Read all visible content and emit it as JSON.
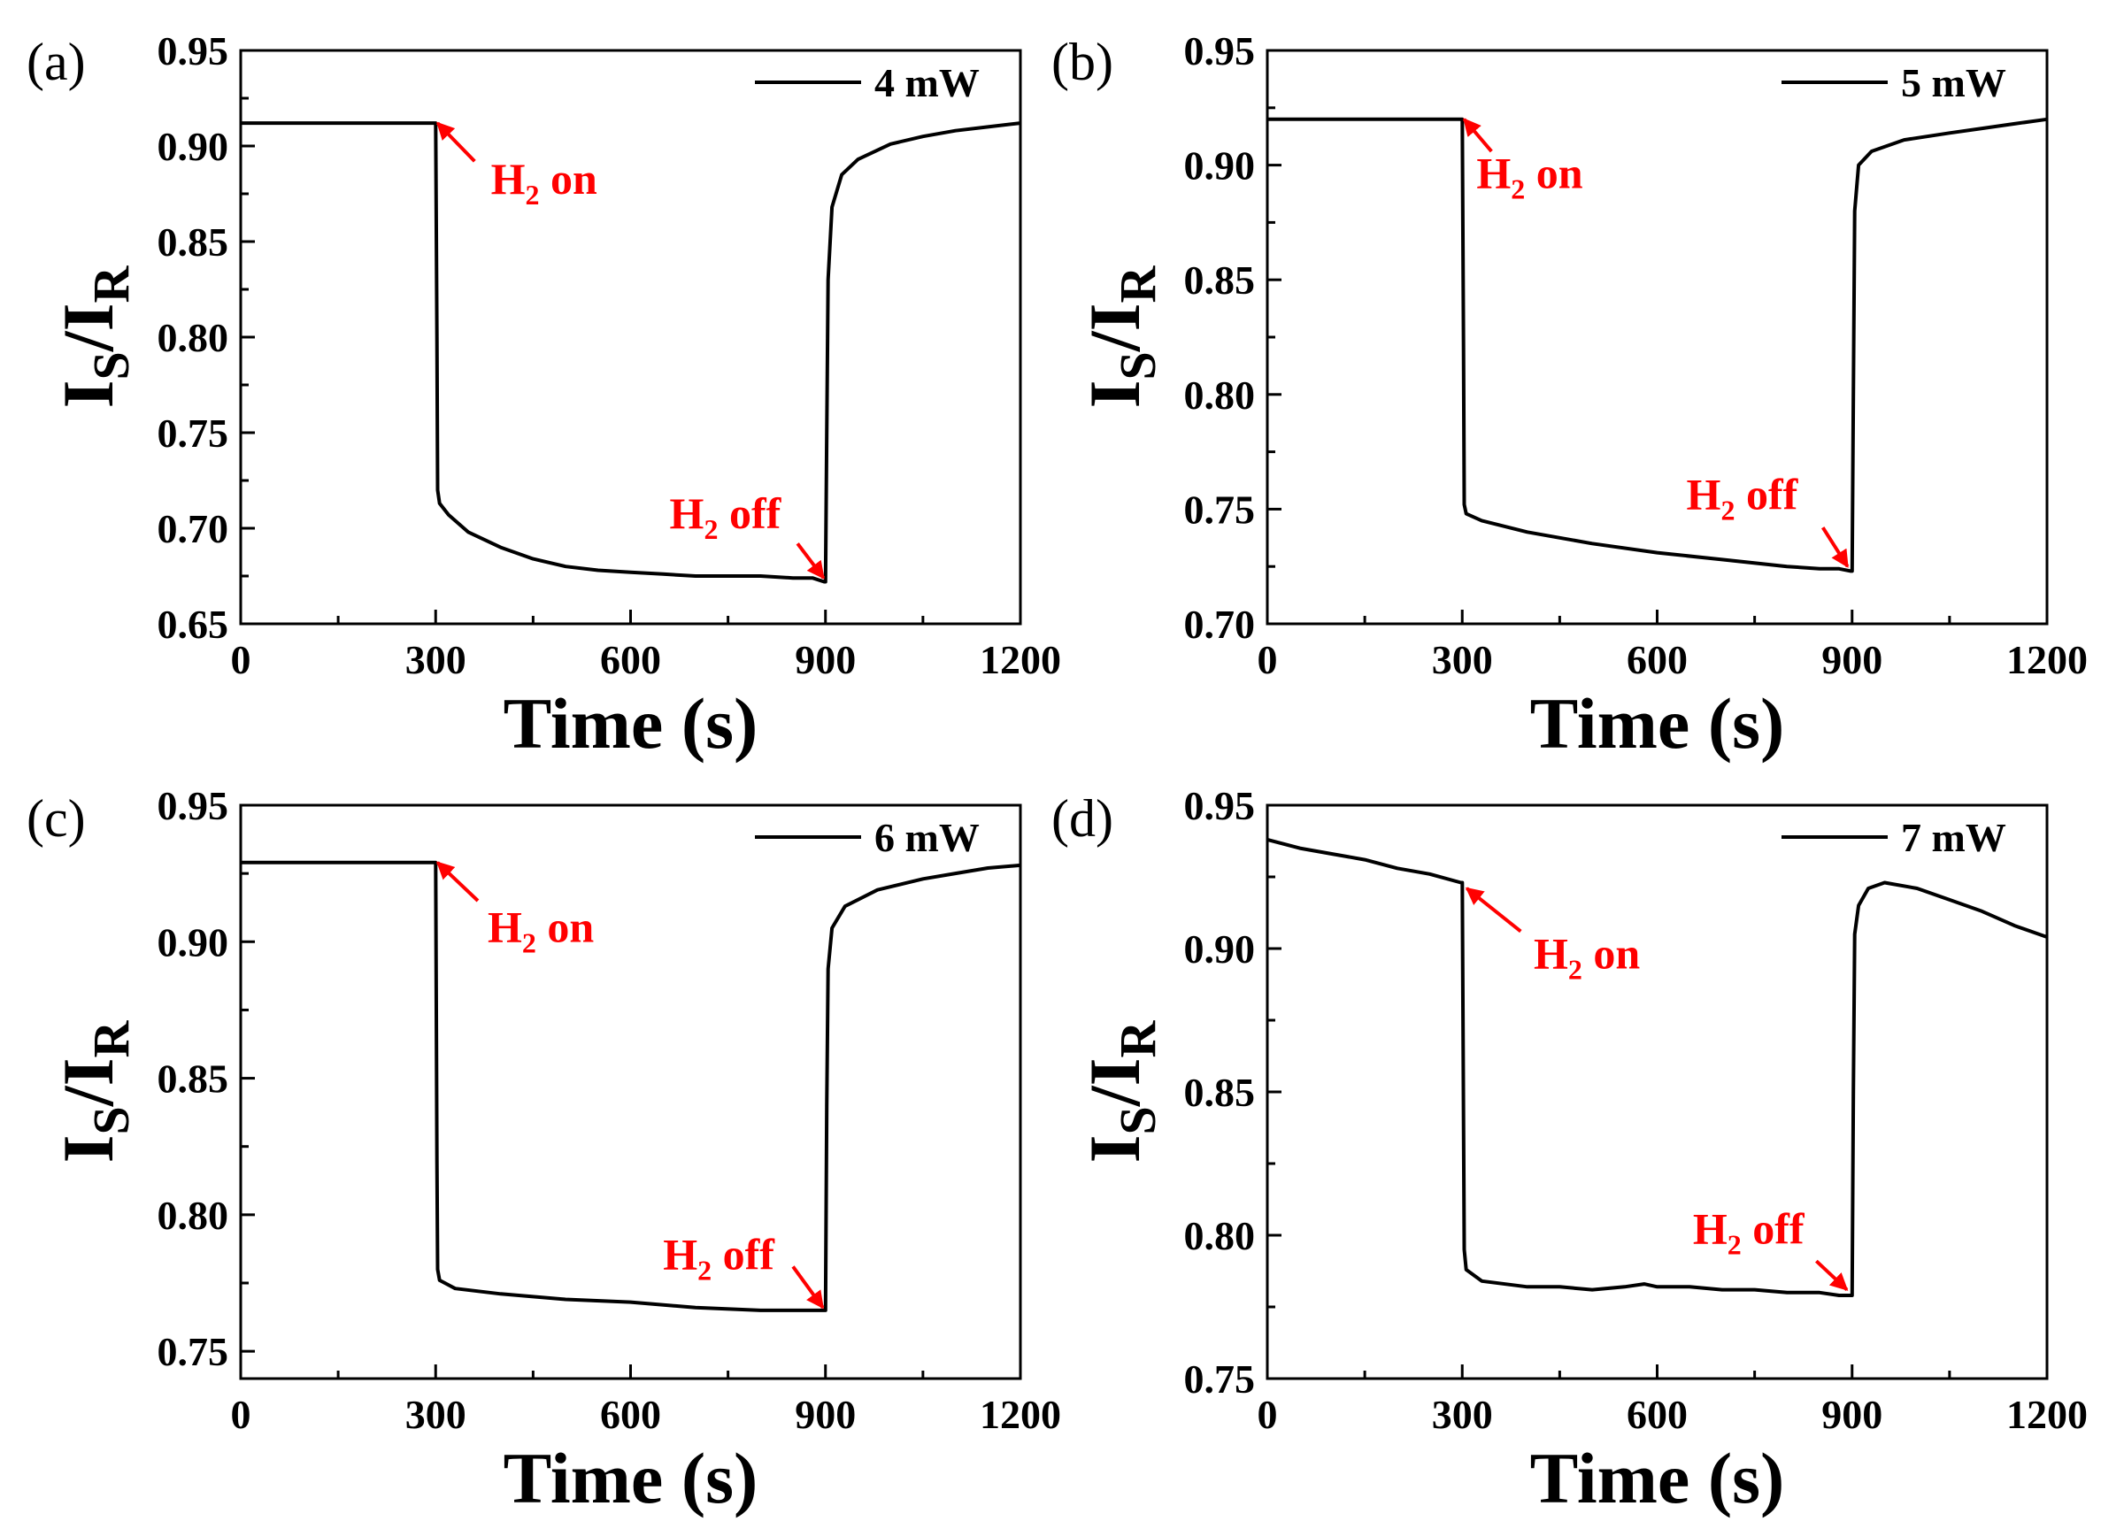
{
  "chart_data": [
    {
      "type": "line",
      "panel_label": "(a)",
      "xlabel": "Time (s)",
      "ylabel": {
        "main": "I",
        "sub1": "S",
        "slash": "/I",
        "sub2": "R"
      },
      "xlim": [
        0,
        1200
      ],
      "ylim": [
        0.65,
        0.95
      ],
      "xticks": [
        0,
        300,
        600,
        900,
        1200
      ],
      "yticks": [
        "0.65",
        "0.70",
        "0.75",
        "0.80",
        "0.85",
        "0.90",
        "0.95"
      ],
      "legend": {
        "label": "4 mW",
        "position": "top-right"
      },
      "series": [
        {
          "color": "#000000",
          "points": [
            [
              0,
              0.912
            ],
            [
              298,
              0.912
            ],
            [
              300,
              0.912
            ],
            [
              302,
              0.8
            ],
            [
              303,
              0.72
            ],
            [
              306,
              0.713
            ],
            [
              320,
              0.707
            ],
            [
              350,
              0.698
            ],
            [
              400,
              0.69
            ],
            [
              450,
              0.684
            ],
            [
              500,
              0.68
            ],
            [
              550,
              0.678
            ],
            [
              600,
              0.677
            ],
            [
              650,
              0.676
            ],
            [
              700,
              0.675
            ],
            [
              750,
              0.675
            ],
            [
              800,
              0.675
            ],
            [
              850,
              0.674
            ],
            [
              880,
              0.674
            ],
            [
              898,
              0.672
            ],
            [
              900,
              0.672
            ],
            [
              902,
              0.75
            ],
            [
              904,
              0.83
            ],
            [
              910,
              0.868
            ],
            [
              925,
              0.885
            ],
            [
              950,
              0.893
            ],
            [
              1000,
              0.901
            ],
            [
              1050,
              0.905
            ],
            [
              1100,
              0.908
            ],
            [
              1150,
              0.91
            ],
            [
              1200,
              0.912
            ]
          ]
        }
      ],
      "annotations": [
        {
          "main": "H",
          "sub": "2",
          "rest": " on",
          "text_at": [
            385,
            0.875
          ],
          "arrow_from": [
            360,
            0.892
          ],
          "arrow_to": [
            303,
            0.912
          ]
        },
        {
          "main": "H",
          "sub": "2",
          "rest": " off",
          "text_at": [
            660,
            0.7
          ],
          "arrow_from": [
            857,
            0.692
          ],
          "arrow_to": [
            897,
            0.674
          ]
        }
      ]
    },
    {
      "type": "line",
      "panel_label": "(b)",
      "xlabel": "Time (s)",
      "ylabel": {
        "main": "I",
        "sub1": "S",
        "slash": "/I",
        "sub2": "R"
      },
      "xlim": [
        0,
        1200
      ],
      "ylim": [
        0.7,
        0.95
      ],
      "xticks": [
        0,
        300,
        600,
        900,
        1200
      ],
      "yticks": [
        "0.70",
        "0.75",
        "0.80",
        "0.85",
        "0.90",
        "0.95"
      ],
      "legend": {
        "label": "5 mW",
        "position": "top-right"
      },
      "series": [
        {
          "color": "#000000",
          "points": [
            [
              0,
              0.92
            ],
            [
              298,
              0.92
            ],
            [
              300,
              0.92
            ],
            [
              302,
              0.82
            ],
            [
              303,
              0.752
            ],
            [
              306,
              0.748
            ],
            [
              330,
              0.745
            ],
            [
              400,
              0.74
            ],
            [
              500,
              0.735
            ],
            [
              600,
              0.731
            ],
            [
              700,
              0.728
            ],
            [
              800,
              0.725
            ],
            [
              850,
              0.724
            ],
            [
              880,
              0.724
            ],
            [
              898,
              0.723
            ],
            [
              900,
              0.723
            ],
            [
              902,
              0.8
            ],
            [
              904,
              0.88
            ],
            [
              910,
              0.9
            ],
            [
              930,
              0.906
            ],
            [
              980,
              0.911
            ],
            [
              1050,
              0.914
            ],
            [
              1100,
              0.916
            ],
            [
              1150,
              0.918
            ],
            [
              1200,
              0.92
            ]
          ]
        }
      ],
      "annotations": [
        {
          "main": "H",
          "sub": "2",
          "rest": " on",
          "text_at": [
            322,
            0.89
          ],
          "arrow_from": [
            345,
            0.906
          ],
          "arrow_to": [
            303,
            0.92
          ]
        },
        {
          "main": "H",
          "sub": "2",
          "rest": " off",
          "text_at": [
            645,
            0.75
          ],
          "arrow_from": [
            855,
            0.742
          ],
          "arrow_to": [
            893,
            0.725
          ]
        }
      ]
    },
    {
      "type": "line",
      "panel_label": "(c)",
      "xlabel": "Time (s)",
      "ylabel": {
        "main": "I",
        "sub1": "S",
        "slash": "/I",
        "sub2": "R"
      },
      "xlim": [
        0,
        1200
      ],
      "ylim": [
        0.74,
        0.95
      ],
      "xticks": [
        0,
        300,
        600,
        900,
        1200
      ],
      "yticks": [
        "0.75",
        "0.80",
        "0.85",
        "0.90",
        "0.95"
      ],
      "legend": {
        "label": "6 mW",
        "position": "top-right"
      },
      "series": [
        {
          "color": "#000000",
          "points": [
            [
              0,
              0.929
            ],
            [
              298,
              0.929
            ],
            [
              300,
              0.929
            ],
            [
              302,
              0.82
            ],
            [
              303,
              0.78
            ],
            [
              306,
              0.776
            ],
            [
              330,
              0.773
            ],
            [
              400,
              0.771
            ],
            [
              500,
              0.769
            ],
            [
              600,
              0.768
            ],
            [
              700,
              0.766
            ],
            [
              800,
              0.765
            ],
            [
              880,
              0.765
            ],
            [
              900,
              0.765
            ],
            [
              902,
              0.84
            ],
            [
              904,
              0.89
            ],
            [
              910,
              0.905
            ],
            [
              930,
              0.913
            ],
            [
              980,
              0.919
            ],
            [
              1050,
              0.923
            ],
            [
              1100,
              0.925
            ],
            [
              1150,
              0.927
            ],
            [
              1200,
              0.928
            ]
          ]
        }
      ],
      "annotations": [
        {
          "main": "H",
          "sub": "2",
          "rest": " on",
          "text_at": [
            380,
            0.9
          ],
          "arrow_from": [
            365,
            0.915
          ],
          "arrow_to": [
            303,
            0.929
          ]
        },
        {
          "main": "H",
          "sub": "2",
          "rest": " off",
          "text_at": [
            650,
            0.78
          ],
          "arrow_from": [
            850,
            0.781
          ],
          "arrow_to": [
            896,
            0.766
          ]
        }
      ]
    },
    {
      "type": "line",
      "panel_label": "(d)",
      "xlabel": "Time (s)",
      "ylabel": {
        "main": "I",
        "sub1": "S",
        "slash": "/I",
        "sub2": "R"
      },
      "xlim": [
        0,
        1200
      ],
      "ylim": [
        0.75,
        0.95
      ],
      "xticks": [
        0,
        300,
        600,
        900,
        1200
      ],
      "yticks": [
        "0.75",
        "0.80",
        "0.85",
        "0.90",
        "0.95"
      ],
      "legend": {
        "label": "7 mW",
        "position": "top-right"
      },
      "series": [
        {
          "color": "#000000",
          "points": [
            [
              0,
              0.938
            ],
            [
              50,
              0.935
            ],
            [
              100,
              0.933
            ],
            [
              150,
              0.931
            ],
            [
              200,
              0.928
            ],
            [
              250,
              0.926
            ],
            [
              298,
              0.923
            ],
            [
              300,
              0.923
            ],
            [
              302,
              0.84
            ],
            [
              303,
              0.795
            ],
            [
              306,
              0.788
            ],
            [
              330,
              0.784
            ],
            [
              400,
              0.782
            ],
            [
              450,
              0.782
            ],
            [
              500,
              0.781
            ],
            [
              550,
              0.782
            ],
            [
              580,
              0.783
            ],
            [
              600,
              0.782
            ],
            [
              650,
              0.782
            ],
            [
              700,
              0.781
            ],
            [
              750,
              0.781
            ],
            [
              800,
              0.78
            ],
            [
              850,
              0.78
            ],
            [
              880,
              0.779
            ],
            [
              900,
              0.779
            ],
            [
              902,
              0.85
            ],
            [
              904,
              0.905
            ],
            [
              910,
              0.915
            ],
            [
              925,
              0.921
            ],
            [
              950,
              0.923
            ],
            [
              1000,
              0.921
            ],
            [
              1050,
              0.917
            ],
            [
              1100,
              0.913
            ],
            [
              1150,
              0.908
            ],
            [
              1200,
              0.904
            ]
          ]
        }
      ],
      "annotations": [
        {
          "main": "H",
          "sub": "2",
          "rest": " on",
          "text_at": [
            410,
            0.893
          ],
          "arrow_from": [
            390,
            0.906
          ],
          "arrow_to": [
            307,
            0.921
          ]
        },
        {
          "main": "H",
          "sub": "2",
          "rest": " off",
          "text_at": [
            655,
            0.797
          ],
          "arrow_from": [
            845,
            0.791
          ],
          "arrow_to": [
            892,
            0.781
          ]
        }
      ]
    }
  ]
}
